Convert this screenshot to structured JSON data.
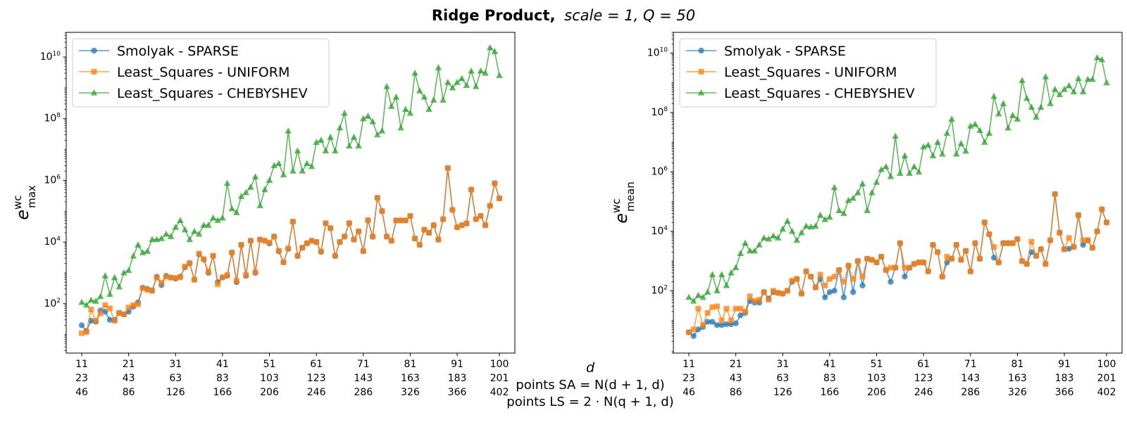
{
  "figure": {
    "title_bold": "Ridge Product,",
    "title_math": "scale = 1, Q = 50",
    "x_label_lines": [
      "d",
      "points SA = N(d + 1, d)",
      "points LS = 2 · N(q + 1, d)"
    ]
  },
  "colors": {
    "smolyak": "#1f77b4",
    "uniform": "#ff7f0e",
    "chebyshev": "#2ca02c",
    "axes": "#000000"
  },
  "chart_data": [
    {
      "type": "line",
      "ylabel": "e_max^wc",
      "ylabel_base": "e",
      "ylabel_sup": "wc",
      "ylabel_sub": "max",
      "yscale": "log",
      "ylim": [
        2.5,
        63000000000.0
      ],
      "xlim": [
        7.7,
        103.3
      ],
      "legend_position": "upper-left",
      "y_ticks": [
        {
          "value": 100,
          "mantissa": "10",
          "exp": "2"
        },
        {
          "value": 10000,
          "mantissa": "10",
          "exp": "4"
        },
        {
          "value": 1000000,
          "mantissa": "10",
          "exp": "6"
        },
        {
          "value": 100000000,
          "mantissa": "10",
          "exp": "8"
        },
        {
          "value": 10000000000,
          "mantissa": "10",
          "exp": "10"
        }
      ],
      "x_ticks": [
        {
          "d": 11,
          "labels": [
            "11",
            "23",
            "46"
          ]
        },
        {
          "d": 21,
          "labels": [
            "21",
            "43",
            "86"
          ]
        },
        {
          "d": 31,
          "labels": [
            "31",
            "63",
            "126"
          ]
        },
        {
          "d": 41,
          "labels": [
            "41",
            "83",
            "166"
          ]
        },
        {
          "d": 51,
          "labels": [
            "51",
            "103",
            "206"
          ]
        },
        {
          "d": 61,
          "labels": [
            "61",
            "123",
            "246"
          ]
        },
        {
          "d": 71,
          "labels": [
            "71",
            "143",
            "286"
          ]
        },
        {
          "d": 81,
          "labels": [
            "81",
            "163",
            "326"
          ]
        },
        {
          "d": 91,
          "labels": [
            "91",
            "183",
            "366"
          ]
        },
        {
          "d": 100,
          "labels": [
            "100",
            "201",
            "402"
          ]
        }
      ],
      "d_start": 11,
      "series": [
        {
          "name": "Smolyak - SPARSE",
          "color": "#1f77b4",
          "marker": "circle",
          "values": [
            20,
            13,
            28,
            26,
            60,
            55,
            30,
            30,
            50,
            45,
            55,
            80,
            110,
            330,
            300,
            270,
            750,
            400,
            800,
            700,
            650,
            750,
            1500,
            2000,
            600,
            4000,
            2700,
            1000,
            3500,
            500,
            700,
            800,
            4500,
            500,
            8000,
            800,
            11000,
            1000,
            12000,
            11000,
            9000,
            15000,
            5000,
            2200,
            6000,
            45000,
            3500,
            6500,
            9000,
            11000,
            10000,
            4800,
            40000,
            28000,
            3500,
            10000,
            15000,
            40000,
            12000,
            22000,
            5000,
            50000,
            15000,
            270000,
            100000,
            15000,
            11000,
            50000,
            50000,
            50000,
            70000,
            13000,
            8000,
            25000,
            20000,
            35000,
            12000,
            55000,
            2500000,
            110000,
            30000,
            35000,
            40000,
            500000,
            55000,
            70000,
            35000,
            150000,
            800000,
            260000
          ]
        },
        {
          "name": "Least_Squares - UNIFORM",
          "color": "#ff7f0e",
          "marker": "square",
          "values": [
            11,
            12,
            65,
            28,
            48,
            90,
            70,
            28,
            50,
            45,
            75,
            90,
            95,
            320,
            280,
            260,
            700,
            480,
            750,
            700,
            680,
            720,
            1600,
            2100,
            600,
            4200,
            2800,
            1100,
            3600,
            420,
            720,
            850,
            4600,
            550,
            8200,
            850,
            11000,
            1050,
            12000,
            11000,
            9500,
            15000,
            5200,
            2200,
            6200,
            46000,
            3600,
            6500,
            9200,
            11000,
            10000,
            4900,
            41000,
            28000,
            3600,
            10000,
            15000,
            41000,
            12000,
            22000,
            5100,
            51000,
            15000,
            270000,
            100000,
            15000,
            11000,
            50000,
            50000,
            50000,
            70000,
            13000,
            8200,
            25000,
            20000,
            35000,
            12000,
            55000,
            2500000,
            110000,
            30000,
            35000,
            40000,
            500000,
            55000,
            70000,
            35000,
            150000,
            800000,
            260000
          ]
        },
        {
          "name": "Least_Squares - CHEBYSHEV",
          "color": "#2ca02c",
          "marker": "triangle",
          "values": [
            110,
            90,
            130,
            120,
            170,
            800,
            200,
            700,
            350,
            1000,
            1200,
            3500,
            8000,
            4500,
            5000,
            12000,
            12000,
            13000,
            18000,
            15000,
            30000,
            50000,
            25000,
            12000,
            22000,
            18000,
            35000,
            35000,
            60000,
            50000,
            60000,
            800000,
            120000,
            90000,
            300000,
            400000,
            600000,
            1300000,
            150000,
            500000,
            1000000,
            3000000,
            3500000,
            1500000,
            40000000,
            2000000,
            9000000,
            2000000,
            3500000,
            2800000,
            17000000,
            20000000,
            9000000,
            25000000,
            9000000,
            50000000,
            150000000,
            13000000,
            25000000,
            13000000,
            100000000,
            120000000,
            80000000,
            30000000,
            40000000,
            1100000000,
            250000000,
            500000000,
            50000000,
            200000000,
            150000000,
            3000000000,
            800000000,
            500000000,
            200000000,
            400000000,
            4500000000,
            400000000,
            1500000000,
            1000000000,
            1500000000,
            2000000000,
            1200000000,
            3500000000,
            1100000000,
            3500000000,
            3000000000,
            20000000000,
            15000000000,
            2500000000
          ]
        }
      ]
    },
    {
      "type": "line",
      "ylabel": "e_mean^wc",
      "ylabel_base": "e",
      "ylabel_sup": "wc",
      "ylabel_sub": "mean",
      "yscale": "log",
      "ylim": [
        0.8,
        50000000000.0
      ],
      "xlim": [
        7.7,
        103.3
      ],
      "legend_position": "upper-left",
      "y_ticks": [
        {
          "value": 100,
          "mantissa": "10",
          "exp": "2"
        },
        {
          "value": 10000,
          "mantissa": "10",
          "exp": "4"
        },
        {
          "value": 1000000,
          "mantissa": "10",
          "exp": "6"
        },
        {
          "value": 100000000,
          "mantissa": "10",
          "exp": "8"
        },
        {
          "value": 10000000000,
          "mantissa": "10",
          "exp": "10"
        }
      ],
      "x_ticks": [
        {
          "d": 11,
          "labels": [
            "11",
            "23",
            "46"
          ]
        },
        {
          "d": 21,
          "labels": [
            "21",
            "43",
            "86"
          ]
        },
        {
          "d": 31,
          "labels": [
            "31",
            "63",
            "126"
          ]
        },
        {
          "d": 41,
          "labels": [
            "41",
            "83",
            "166"
          ]
        },
        {
          "d": 51,
          "labels": [
            "51",
            "103",
            "206"
          ]
        },
        {
          "d": 61,
          "labels": [
            "61",
            "123",
            "246"
          ]
        },
        {
          "d": 71,
          "labels": [
            "71",
            "143",
            "286"
          ]
        },
        {
          "d": 81,
          "labels": [
            "81",
            "163",
            "326"
          ]
        },
        {
          "d": 91,
          "labels": [
            "91",
            "183",
            "366"
          ]
        },
        {
          "d": 100,
          "labels": [
            "100",
            "201",
            "402"
          ]
        }
      ],
      "d_start": 11,
      "series": [
        {
          "name": "Smolyak - SPARSE",
          "color": "#1f77b4",
          "marker": "circle",
          "values": [
            4,
            3,
            5,
            6,
            9,
            9,
            7,
            7,
            7.5,
            7.5,
            8,
            15,
            18,
            45,
            40,
            40,
            90,
            55,
            90,
            85,
            80,
            100,
            200,
            250,
            80,
            450,
            300,
            130,
            250,
            60,
            90,
            100,
            500,
            60,
            700,
            90,
            1000,
            150,
            1200,
            1100,
            900,
            1400,
            500,
            200,
            600,
            4000,
            300,
            600,
            800,
            900,
            900,
            450,
            3500,
            2000,
            300,
            900,
            1200,
            3500,
            1100,
            2200,
            450,
            4000,
            1200,
            20000,
            8000,
            1300,
            900,
            4000,
            4000,
            4000,
            5500,
            1000,
            800,
            2000,
            1500,
            2500,
            800,
            5000,
            180000,
            9000,
            2500,
            2600,
            3000,
            35000,
            3500,
            5000,
            2800,
            10000,
            55000,
            20000
          ]
        },
        {
          "name": "Least_Squares - UNIFORM",
          "color": "#ff7f0e",
          "marker": "square",
          "values": [
            4,
            5,
            25,
            7,
            18,
            28,
            30,
            10,
            25,
            10,
            25,
            25,
            20,
            65,
            45,
            50,
            90,
            50,
            100,
            85,
            80,
            100,
            220,
            250,
            80,
            450,
            300,
            130,
            350,
            150,
            250,
            300,
            500,
            200,
            700,
            250,
            1000,
            300,
            1200,
            1100,
            900,
            1400,
            500,
            600,
            600,
            4000,
            600,
            600,
            800,
            900,
            900,
            450,
            3500,
            2000,
            300,
            1400,
            1200,
            3500,
            1100,
            2200,
            450,
            4000,
            1200,
            20000,
            8000,
            3000,
            900,
            4000,
            4000,
            4000,
            5500,
            1000,
            800,
            4500,
            1500,
            2500,
            800,
            5000,
            180000,
            9000,
            2500,
            6000,
            3000,
            35000,
            5000,
            5000,
            2800,
            10000,
            55000,
            20000
          ]
        },
        {
          "name": "Least_Squares - CHEBYSHEV",
          "color": "#2ca02c",
          "marker": "triangle",
          "values": [
            60,
            45,
            70,
            60,
            90,
            350,
            100,
            350,
            150,
            400,
            600,
            1800,
            4000,
            2200,
            2200,
            3500,
            6000,
            5500,
            7000,
            6000,
            12000,
            22000,
            10000,
            5000,
            9000,
            15000,
            14000,
            15000,
            35000,
            25000,
            30000,
            300000,
            50000,
            40000,
            110000,
            130000,
            200000,
            400000,
            50000,
            200000,
            450000,
            1200000,
            1500000,
            700000,
            16000000,
            900000,
            3500000,
            900000,
            1500000,
            1000000,
            7000000,
            8000000,
            3500000,
            10000000,
            4000000,
            20000000,
            60000000,
            4000000,
            9000000,
            5000000,
            35000000,
            40000000,
            25000000,
            10000000,
            20000000,
            350000000,
            90000000,
            200000000,
            30000000,
            80000000,
            60000000,
            1200000000,
            300000000,
            150000000,
            70000000,
            150000000,
            1600000000,
            200000000,
            600000000,
            400000000,
            600000000,
            800000000,
            500000000,
            1400000000,
            500000000,
            1300000000,
            1300000000,
            7000000000,
            6000000000,
            1000000000
          ]
        }
      ]
    }
  ]
}
